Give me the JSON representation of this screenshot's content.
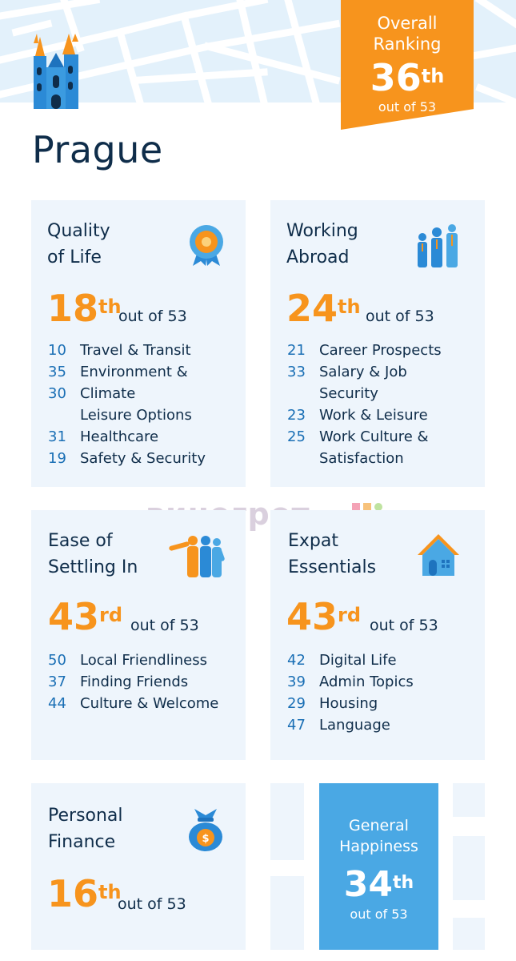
{
  "city": "Prague",
  "overall": {
    "line1": "Overall",
    "line2": "Ranking",
    "rank": "36",
    "suffix": "th",
    "out_of": "out of 53"
  },
  "cards": {
    "quality_of_life": {
      "title_line1": "Quality",
      "title_line2": "of Life",
      "rank": "18",
      "suffix": "th",
      "out_of": "out of 53",
      "items": [
        {
          "num": "10",
          "label": "Travel & Transit"
        },
        {
          "num": "35",
          "label": "Environment &"
        },
        {
          "num": "30",
          "label": "Climate"
        },
        {
          "num": "",
          "label": "Leisure Options"
        },
        {
          "num": "31",
          "label": "Healthcare"
        },
        {
          "num": "19",
          "label": "Safety & Security"
        }
      ],
      "icon": "award-badge-icon"
    },
    "working_abroad": {
      "title_line1": "Working",
      "title_line2": "Abroad",
      "rank": "24",
      "suffix": "th",
      "out_of": "out of 53",
      "items": [
        {
          "num": "21",
          "label": "Career Prospects"
        },
        {
          "num": "33",
          "label": "Salary & Job"
        },
        {
          "num": "",
          "label": "Security"
        },
        {
          "num": "23",
          "label": "Work & Leisure"
        },
        {
          "num": "25",
          "label": "Work Culture &"
        },
        {
          "num": "",
          "label": "Satisfaction"
        }
      ],
      "icon": "business-people-icon"
    },
    "ease_of_settling": {
      "title_line1": "Ease of",
      "title_line2": "Settling In",
      "rank": "43",
      "suffix": "rd",
      "out_of": "out of 53",
      "items": [
        {
          "num": "50",
          "label": "Local Friendliness"
        },
        {
          "num": "37",
          "label": "Finding Friends"
        },
        {
          "num": "44",
          "label": "Culture & Welcome"
        }
      ],
      "icon": "friends-group-icon"
    },
    "expat_essentials": {
      "title_line1": "Expat",
      "title_line2": "Essentials",
      "rank": "43",
      "suffix": "rd",
      "out_of": "out of 53",
      "items": [
        {
          "num": "42",
          "label": "Digital Life"
        },
        {
          "num": "39",
          "label": "Admin Topics"
        },
        {
          "num": "29",
          "label": "Housing"
        },
        {
          "num": "47",
          "label": "Language"
        }
      ],
      "icon": "house-icon"
    },
    "personal_finance": {
      "title_line1": "Personal",
      "title_line2": "Finance",
      "rank": "16",
      "suffix": "th",
      "out_of": "out of 53",
      "icon": "money-bag-icon"
    }
  },
  "general_happiness": {
    "line1": "General",
    "line2": "Happiness",
    "rank": "34",
    "suffix": "th",
    "out_of": "out of 53"
  },
  "watermark": "винегрет",
  "colors": {
    "accent": "#f7941d",
    "blue": "#4aa8e4",
    "number_blue": "#1a6fb5",
    "card_bg": "#eef5fc",
    "text": "#0f2d4a"
  }
}
